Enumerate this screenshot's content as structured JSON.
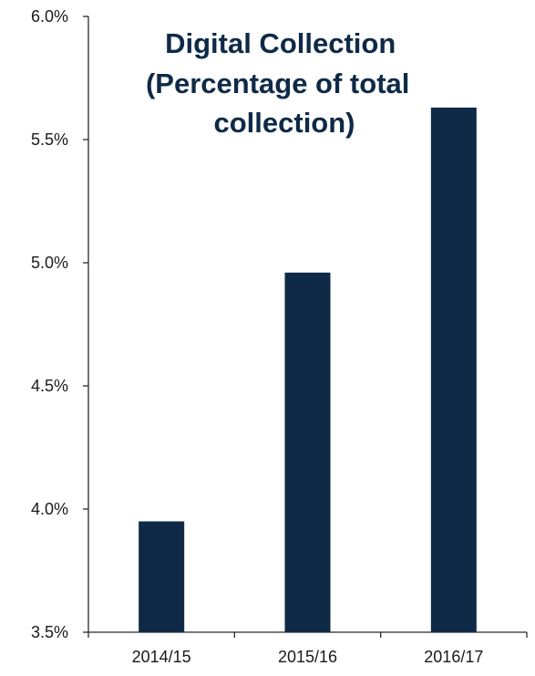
{
  "chart_data": {
    "type": "bar",
    "title_lines": [
      "Digital Collection",
      "(Percentage of total",
      "collection)"
    ],
    "categories": [
      "2014/15",
      "2015/16",
      "2016/17"
    ],
    "values": [
      3.95,
      4.96,
      5.63
    ],
    "unit": "%",
    "ylim": [
      3.5,
      6.0
    ],
    "yticks": [
      "3.5%",
      "4.0%",
      "4.5%",
      "5.0%",
      "5.5%",
      "6.0%"
    ],
    "ytick_values": [
      3.5,
      4.0,
      4.5,
      5.0,
      5.5,
      6.0
    ],
    "grid": false,
    "legend": "none",
    "bar_color": "#0e2a47",
    "axis_color": "#2b2b2b"
  }
}
